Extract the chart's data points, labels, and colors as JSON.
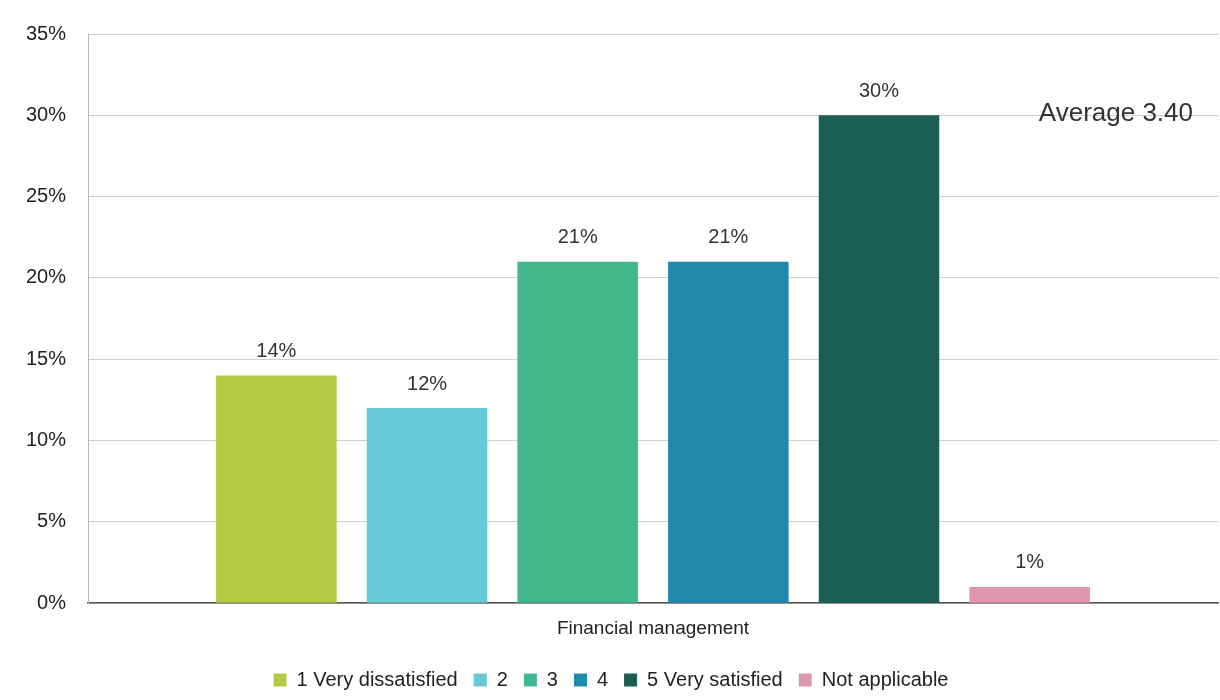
{
  "chart_data": {
    "type": "bar",
    "categories": [
      "Financial management"
    ],
    "series": [
      {
        "name": "1 Very dissatisfied",
        "color": "#b5c944",
        "values": [
          14
        ],
        "value_labels": [
          "14%"
        ]
      },
      {
        "name": "2",
        "color": "#68c9d6",
        "values": [
          12
        ],
        "value_labels": [
          "12%"
        ]
      },
      {
        "name": "3",
        "color": "#41b98c",
        "values": [
          21
        ],
        "value_labels": [
          "21%"
        ]
      },
      {
        "name": "4",
        "color": "#218aac",
        "values": [
          21
        ],
        "value_labels": [
          "21%"
        ]
      },
      {
        "name": "5 Very satisfied",
        "color": "#1a5e54",
        "values": [
          30
        ],
        "value_labels": [
          "30%"
        ]
      },
      {
        "name": "Not applicable",
        "color": "#e096b0",
        "values": [
          1
        ],
        "value_labels": [
          "1%"
        ]
      }
    ],
    "ylim": [
      0,
      35
    ],
    "yticks": [
      {
        "value": 0,
        "label": "0%"
      },
      {
        "value": 5,
        "label": "5%"
      },
      {
        "value": 10,
        "label": "10%"
      },
      {
        "value": 15,
        "label": "15%"
      },
      {
        "value": 20,
        "label": "20%"
      },
      {
        "value": 25,
        "label": "25%"
      },
      {
        "value": 30,
        "label": "30%"
      },
      {
        "value": 35,
        "label": "35%"
      }
    ],
    "grid": "y",
    "legend": "bottom",
    "annotations": [
      "Average 3.40"
    ]
  }
}
